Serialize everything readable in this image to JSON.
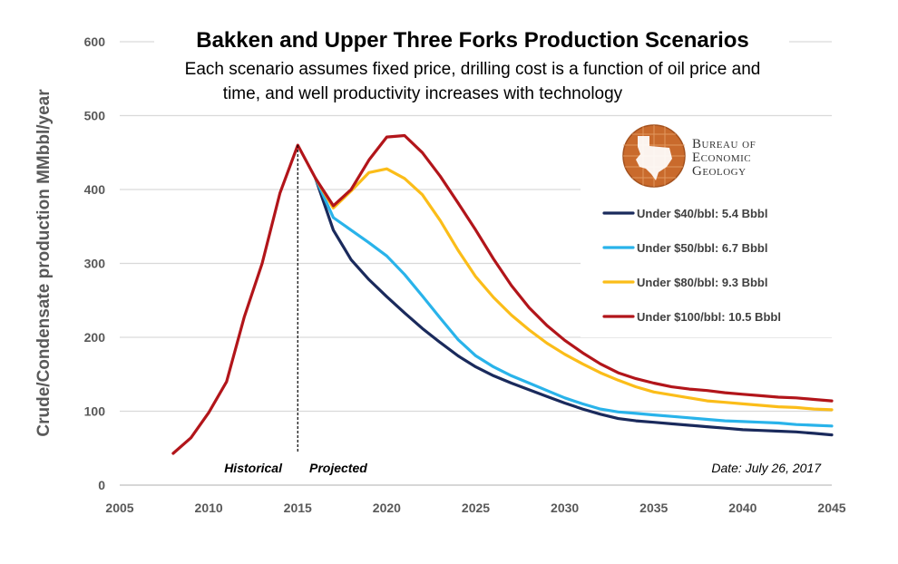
{
  "chart_data": {
    "type": "line",
    "title": "Bakken and Upper Three Forks Production Scenarios",
    "subtitle_lines": [
      "Each scenario assumes fixed price, drilling cost is a function of oil price and",
      "time, and well productivity increases with technology"
    ],
    "xlabel": "",
    "ylabel": "Crude/Condensate production MMbbl/year",
    "xlim": [
      2005,
      2045
    ],
    "ylim": [
      0,
      600
    ],
    "x_ticks": [
      2005,
      2010,
      2015,
      2020,
      2025,
      2030,
      2035,
      2040,
      2045
    ],
    "y_ticks": [
      0,
      100,
      200,
      300,
      400,
      500,
      600
    ],
    "grid": "horizontal",
    "legend_placement": "right",
    "annotations": {
      "historical": "Historical",
      "projected": "Projected",
      "date": "Date: July 26, 2017",
      "divider_year": 2015
    },
    "logo": {
      "lines": [
        "Bureau of",
        "Economic",
        "Geology"
      ]
    },
    "series": [
      {
        "name": "Under $40/bbl: 5.4 Bbbl",
        "color": "#1a2a5c",
        "x": [
          2016,
          2017,
          2018,
          2019,
          2020,
          2021,
          2022,
          2023,
          2024,
          2025,
          2026,
          2027,
          2028,
          2029,
          2030,
          2031,
          2032,
          2033,
          2034,
          2035,
          2036,
          2037,
          2038,
          2039,
          2040,
          2041,
          2042,
          2043,
          2044,
          2045
        ],
        "y": [
          415,
          345,
          305,
          278,
          255,
          233,
          212,
          193,
          175,
          160,
          148,
          138,
          129,
          120,
          111,
          103,
          96,
          90,
          87,
          85,
          83,
          81,
          79,
          77,
          75,
          74,
          73,
          72,
          70,
          68
        ]
      },
      {
        "name": "Under $50/bbl: 6.7 Bbbl",
        "color": "#29b3ea",
        "x": [
          2016,
          2017,
          2018,
          2019,
          2020,
          2021,
          2022,
          2023,
          2024,
          2025,
          2026,
          2027,
          2028,
          2029,
          2030,
          2031,
          2032,
          2033,
          2034,
          2035,
          2036,
          2037,
          2038,
          2039,
          2040,
          2041,
          2042,
          2043,
          2044,
          2045
        ],
        "y": [
          415,
          362,
          345,
          328,
          310,
          285,
          256,
          226,
          197,
          175,
          160,
          148,
          138,
          128,
          118,
          110,
          103,
          99,
          97,
          95,
          93,
          91,
          89,
          87,
          86,
          85,
          84,
          82,
          81,
          80
        ]
      },
      {
        "name": "Under $80/bbl: 9.3 Bbbl",
        "color": "#fbbd19",
        "x": [
          2016,
          2017,
          2018,
          2019,
          2020,
          2021,
          2022,
          2023,
          2024,
          2025,
          2026,
          2027,
          2028,
          2029,
          2030,
          2031,
          2032,
          2033,
          2034,
          2035,
          2036,
          2037,
          2038,
          2039,
          2040,
          2041,
          2042,
          2043,
          2044,
          2045
        ],
        "y": [
          415,
          375,
          398,
          423,
          428,
          415,
          393,
          358,
          318,
          282,
          254,
          230,
          210,
          192,
          177,
          164,
          152,
          142,
          133,
          126,
          122,
          118,
          114,
          112,
          110,
          108,
          106,
          105,
          103,
          102
        ]
      },
      {
        "name": "Under $100/bbl: 10.5 Bbbl",
        "color": "#b2151a",
        "x": [
          2008,
          2009,
          2010,
          2011,
          2012,
          2013,
          2014,
          2015,
          2016,
          2017,
          2018,
          2019,
          2020,
          2021,
          2022,
          2023,
          2024,
          2025,
          2026,
          2027,
          2028,
          2029,
          2030,
          2031,
          2032,
          2033,
          2034,
          2035,
          2036,
          2037,
          2038,
          2039,
          2040,
          2041,
          2042,
          2043,
          2044,
          2045
        ],
        "y": [
          43,
          64,
          98,
          140,
          228,
          300,
          395,
          460,
          415,
          378,
          400,
          440,
          471,
          473,
          450,
          418,
          382,
          345,
          306,
          270,
          240,
          216,
          196,
          179,
          164,
          152,
          144,
          138,
          133,
          130,
          128,
          125,
          123,
          121,
          119,
          118,
          116,
          114
        ]
      }
    ]
  }
}
